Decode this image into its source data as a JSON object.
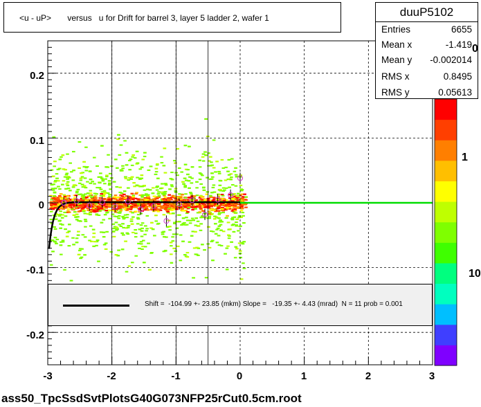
{
  "chart_data": {
    "type": "scatter",
    "title": "<u - uP>       versus   u for Drift for barrel 3, layer 5 ladder 2, wafer 1",
    "xlim": [
      -3,
      3
    ],
    "ylim": [
      -0.25,
      0.25
    ],
    "x_ticks": [
      "-3",
      "-2",
      "-1",
      "0",
      "1",
      "2",
      "3"
    ],
    "y_ticks": [
      "0.2",
      "0.1",
      "0",
      "-0.1",
      "-0.2"
    ],
    "z_ticks": [
      "1",
      "10"
    ],
    "z_partial_top": "0",
    "grid": true,
    "legend_placement": "top-right",
    "profile_points": [
      {
        "x": -2.75,
        "y": 0.0
      },
      {
        "x": -2.55,
        "y": 0.003
      },
      {
        "x": -2.35,
        "y": -0.004
      },
      {
        "x": -2.15,
        "y": 0.001
      },
      {
        "x": -1.95,
        "y": -0.006
      },
      {
        "x": -1.75,
        "y": 0.002
      },
      {
        "x": -1.55,
        "y": -0.01
      },
      {
        "x": -1.35,
        "y": -0.005
      },
      {
        "x": -1.15,
        "y": -0.028
      },
      {
        "x": -0.95,
        "y": -0.002
      },
      {
        "x": -0.75,
        "y": 0.004
      },
      {
        "x": -0.55,
        "y": -0.018
      },
      {
        "x": -0.35,
        "y": 0.005
      },
      {
        "x": -0.15,
        "y": 0.012
      },
      {
        "x": 0.0,
        "y": 0.038
      }
    ],
    "fit_curve_color": "#000000",
    "fit_line_color": "#00dd00",
    "colors": [
      "#7f00ff",
      "#3f3fff",
      "#00bfff",
      "#00ffbf",
      "#00ff7f",
      "#3fff00",
      "#7fff00",
      "#bfff00",
      "#ffff00",
      "#ffbf00",
      "#ff7f00",
      "#ff3f00",
      "#ff0000"
    ]
  },
  "stats": {
    "name": "duuP5102",
    "rows": [
      {
        "key": "Entries",
        "value": "6655"
      },
      {
        "key": "Mean x",
        "value": "-1.419"
      },
      {
        "key": "Mean y",
        "value": "-0.002014"
      },
      {
        "key": "RMS x",
        "value": "0.8495"
      },
      {
        "key": "RMS y",
        "value": "0.05613"
      }
    ]
  },
  "fit": {
    "text": "Shift =  -104.99 +- 23.85 (mkm) Slope =   -19.35 +- 4.43 (mrad)  N = 11 prob = 0.001"
  },
  "footer": "ass50_TpcSsdSvtPlotsG40G073NFP25rCut0.5cm.root"
}
